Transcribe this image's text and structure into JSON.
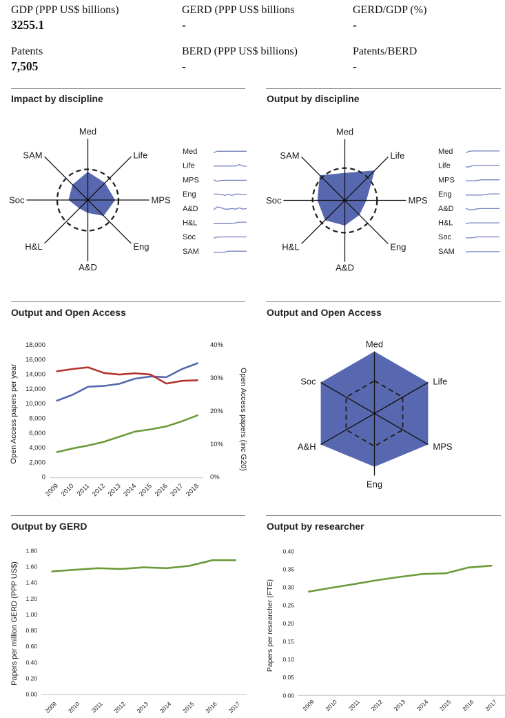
{
  "stats": [
    {
      "label": "GDP (PPP US$ billions)",
      "value": "3255.1"
    },
    {
      "label": "GERD (PPP US$ billions",
      "value": "-"
    },
    {
      "label": "GERD/GDP (%)",
      "value": "-"
    },
    {
      "label": "Patents",
      "value": "7,505"
    },
    {
      "label": "BERD (PPP US$ billions)",
      "value": "-"
    },
    {
      "label": "Patents/BERD",
      "value": "-"
    }
  ],
  "colors": {
    "radar_fill": "#5868b0",
    "sparkline": "#7480bd",
    "series_blue": "#5767ae",
    "series_red": "#b5352f",
    "series_green": "#6b9a3a",
    "divider": "#8a8a8a"
  },
  "chart_data": [
    {
      "type": "radar",
      "title": "Impact by discipline",
      "axes": [
        "Med",
        "Life",
        "MPS",
        "Eng",
        "A&D",
        "H&L",
        "Soc",
        "SAM"
      ],
      "values": [
        0.92,
        0.79,
        0.89,
        0.73,
        0.42,
        0.39,
        0.63,
        0.71
      ],
      "reference": 1.0,
      "max": 2.0,
      "sparklines": [
        {
          "label": "Med",
          "trend": [
            0.3,
            0.6,
            0.6,
            0.6,
            0.6,
            0.6,
            0.6,
            0.6,
            0.6,
            0.6
          ]
        },
        {
          "label": "Life",
          "trend": [
            0.5,
            0.5,
            0.5,
            0.5,
            0.5,
            0.5,
            0.5,
            0.8,
            0.5,
            0.45
          ]
        },
        {
          "label": "MPS",
          "trend": [
            0.6,
            0.3,
            0.45,
            0.5,
            0.5,
            0.5,
            0.5,
            0.5,
            0.5,
            0.5
          ]
        },
        {
          "label": "Eng",
          "trend": [
            0.6,
            0.6,
            0.55,
            0.35,
            0.55,
            0.35,
            0.6,
            0.6,
            0.5,
            0.45
          ]
        },
        {
          "label": "A&D",
          "trend": [
            0.3,
            0.9,
            0.75,
            0.45,
            0.45,
            0.55,
            0.45,
            0.7,
            0.45,
            0.55
          ]
        },
        {
          "label": "H&L",
          "trend": [
            0.4,
            0.4,
            0.4,
            0.4,
            0.4,
            0.4,
            0.55,
            0.7,
            0.7,
            0.7
          ]
        },
        {
          "label": "Soc",
          "trend": [
            0.35,
            0.55,
            0.6,
            0.6,
            0.6,
            0.6,
            0.6,
            0.6,
            0.6,
            0.6
          ]
        },
        {
          "label": "SAM",
          "trend": [
            0.35,
            0.35,
            0.35,
            0.4,
            0.6,
            0.6,
            0.6,
            0.6,
            0.6,
            0.6
          ]
        }
      ]
    },
    {
      "type": "radar",
      "title": "Output by discipline",
      "axes": [
        "Med",
        "Life",
        "MPS",
        "Eng",
        "A&D",
        "H&L",
        "Soc",
        "SAM"
      ],
      "values": [
        0.85,
        1.31,
        0.67,
        0.64,
        0.78,
        0.87,
        0.85,
        1.1
      ],
      "reference": 1.0,
      "max": 1.9,
      "sparklines": [
        {
          "label": "Med",
          "trend": [
            0.3,
            0.6,
            0.65,
            0.65,
            0.65,
            0.65,
            0.65,
            0.65,
            0.65,
            0.65
          ]
        },
        {
          "label": "Life",
          "trend": [
            0.3,
            0.35,
            0.6,
            0.65,
            0.65,
            0.65,
            0.65,
            0.65,
            0.65,
            0.65
          ]
        },
        {
          "label": "MPS",
          "trend": [
            0.4,
            0.4,
            0.4,
            0.45,
            0.6,
            0.6,
            0.6,
            0.6,
            0.6,
            0.6
          ]
        },
        {
          "label": "Eng",
          "trend": [
            0.4,
            0.4,
            0.4,
            0.4,
            0.4,
            0.45,
            0.6,
            0.65,
            0.65,
            0.65
          ]
        },
        {
          "label": "A&D",
          "trend": [
            0.6,
            0.3,
            0.3,
            0.5,
            0.55,
            0.55,
            0.55,
            0.55,
            0.55,
            0.55
          ]
        },
        {
          "label": "H&L",
          "trend": [
            0.4,
            0.55,
            0.55,
            0.55,
            0.55,
            0.55,
            0.55,
            0.55,
            0.55,
            0.55
          ]
        },
        {
          "label": "Soc",
          "trend": [
            0.4,
            0.4,
            0.45,
            0.6,
            0.6,
            0.6,
            0.6,
            0.6,
            0.6,
            0.6
          ]
        },
        {
          "label": "SAM",
          "trend": [
            0.45,
            0.5,
            0.5,
            0.5,
            0.5,
            0.5,
            0.5,
            0.5,
            0.5,
            0.5
          ]
        }
      ]
    },
    {
      "type": "line",
      "title": "Output and Open Access",
      "x": [
        "2009",
        "2010",
        "2011",
        "2012",
        "2013",
        "2014",
        "2015",
        "2016",
        "2017",
        "2018"
      ],
      "ylabel": "Open Access papers per year",
      "y2label": "Open Access papers (inc G20)",
      "ylim": [
        0,
        18000
      ],
      "y2lim": [
        0,
        40
      ],
      "yticks": [
        "0",
        "2,000",
        "4,000",
        "6,000",
        "8,000",
        "10,000",
        "12,000",
        "14,000",
        "16,000",
        "18,000"
      ],
      "y2ticks": [
        "0%",
        "10%",
        "20%",
        "30%",
        "40%"
      ],
      "grid": false,
      "series": [
        {
          "name": "blue",
          "axis": "left",
          "color": "#5767ae",
          "values": [
            10400,
            11200,
            12300,
            12400,
            12700,
            13400,
            13700,
            13600,
            14700,
            15500
          ]
        },
        {
          "name": "red",
          "axis": "right",
          "color": "#b5352f",
          "values": [
            32.0,
            32.7,
            33.2,
            31.5,
            31.0,
            31.4,
            31.0,
            28.3,
            29.1,
            29.3
          ]
        },
        {
          "name": "green",
          "axis": "left",
          "color": "#6b9a3a",
          "values": [
            3400,
            3900,
            4300,
            4800,
            5500,
            6200,
            6500,
            6900,
            7600,
            8400
          ]
        }
      ]
    },
    {
      "type": "radar",
      "title": "Output and Open Access",
      "axes": [
        "Med",
        "Life",
        "MPS",
        "Eng",
        "A&H",
        "Soc"
      ],
      "values": [
        1.9,
        1.9,
        1.9,
        1.63,
        1.9,
        1.9
      ],
      "reference": 1.0,
      "max": 1.9
    },
    {
      "type": "line",
      "title": "Output by GERD",
      "x": [
        "2009",
        "2010",
        "2011",
        "2012",
        "2013",
        "2014",
        "2015",
        "2016",
        "2017"
      ],
      "ylabel": "Papers per million GERD (PPP US$)",
      "ylim": [
        0,
        1.8
      ],
      "yticks": [
        "0.00",
        "0.20",
        "0.40",
        "0.60",
        "0.80",
        "1.00",
        "1.20",
        "1.40",
        "1.60",
        "1.80"
      ],
      "grid": false,
      "series": [
        {
          "name": "green",
          "axis": "left",
          "color": "#6b9a3a",
          "values": [
            1.54,
            1.56,
            1.58,
            1.57,
            1.59,
            1.58,
            1.61,
            1.68,
            1.68
          ]
        }
      ]
    },
    {
      "type": "line",
      "title": "Output by researcher",
      "x": [
        "2009",
        "2010",
        "2011",
        "2012",
        "2013",
        "2014",
        "2015",
        "2016",
        "2017"
      ],
      "ylabel": "Papers per researcher (FTE)",
      "ylim": [
        0,
        0.4
      ],
      "yticks": [
        "0.00",
        "0.05",
        "0.10",
        "0.15",
        "0.20",
        "0.25",
        "0.30",
        "0.35",
        "0.40"
      ],
      "grid": false,
      "series": [
        {
          "name": "green",
          "axis": "left",
          "color": "#6b9a3a",
          "values": [
            0.288,
            0.299,
            0.309,
            0.32,
            0.329,
            0.337,
            0.339,
            0.355,
            0.36
          ]
        }
      ]
    }
  ]
}
